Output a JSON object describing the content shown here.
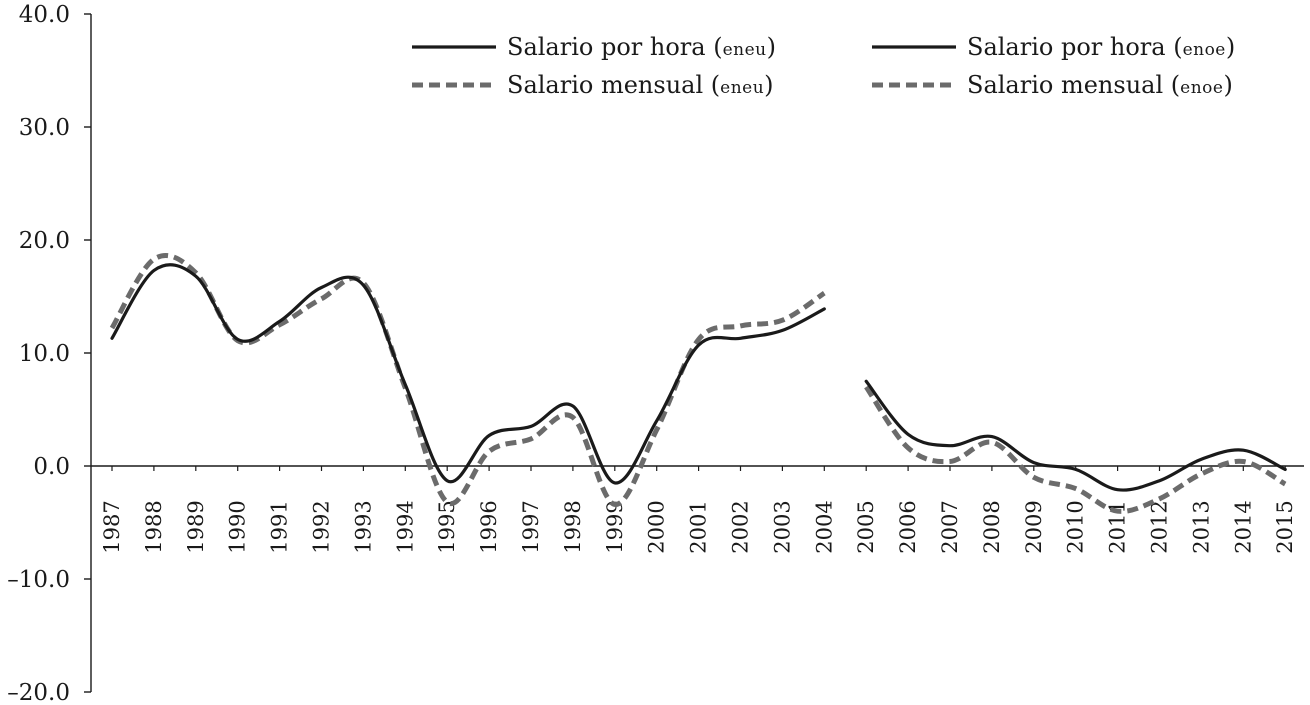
{
  "chart_data": {
    "type": "line",
    "x": [
      1987,
      1988,
      1989,
      1990,
      1991,
      1992,
      1993,
      1994,
      1995,
      1996,
      1997,
      1998,
      1999,
      2000,
      2001,
      2002,
      2003,
      2004,
      2005,
      2006,
      2007,
      2008,
      2009,
      2010,
      2011,
      2012,
      2013,
      2014,
      2015
    ],
    "x_tick_labels": [
      "1987",
      "1988",
      "1989",
      "1990",
      "1991",
      "1992",
      "1993",
      "1994",
      "1995",
      "1996",
      "1997",
      "1998",
      "1999",
      "2000",
      "2001",
      "2002",
      "2003",
      "2004",
      "2005",
      "2006",
      "2007",
      "2008",
      "2009",
      "2010",
      "2011",
      "2012",
      "2013",
      "2014",
      "2015"
    ],
    "y_ticks": [
      -20,
      -10,
      0,
      10,
      20,
      30,
      40
    ],
    "y_tick_labels": [
      "–20.0",
      "–10.0",
      "0.0",
      "10.0",
      "20.0",
      "30.0",
      "40.0"
    ],
    "ylim": [
      -20,
      40
    ],
    "title": "",
    "xlabel": "",
    "ylabel": "",
    "grid": false,
    "legend_position": "top-right",
    "series": [
      {
        "name": "Salario por hora",
        "source": "ENEU",
        "style": "solid",
        "color": "#1a1a1a",
        "values": [
          11.3,
          17.3,
          16.8,
          11.2,
          12.8,
          15.8,
          16.0,
          7.2,
          -1.3,
          2.7,
          3.5,
          5.3,
          -1.5,
          4.0,
          10.7,
          11.3,
          12.0,
          13.9,
          null,
          null,
          null,
          null,
          null,
          null,
          null,
          null,
          null,
          null,
          null
        ]
      },
      {
        "name": "Salario mensual",
        "source": "ENEU",
        "style": "dashed",
        "color": "#6b6b6b",
        "values": [
          12.2,
          18.3,
          17.1,
          11.1,
          12.5,
          14.8,
          16.2,
          6.9,
          -3.2,
          1.3,
          2.4,
          4.3,
          -3.4,
          3.2,
          11.2,
          12.4,
          12.9,
          15.3,
          null,
          null,
          null,
          null,
          null,
          null,
          null,
          null,
          null,
          null,
          null
        ]
      },
      {
        "name": "Salario por hora",
        "source": "ENOE",
        "style": "solid",
        "color": "#1a1a1a",
        "values": [
          null,
          null,
          null,
          null,
          null,
          null,
          null,
          null,
          null,
          null,
          null,
          null,
          null,
          null,
          null,
          null,
          null,
          null,
          7.5,
          2.8,
          1.8,
          2.6,
          0.3,
          -0.3,
          -2.1,
          -1.3,
          0.6,
          1.4,
          -0.3
        ]
      },
      {
        "name": "Salario mensual",
        "source": "ENOE",
        "style": "dashed",
        "color": "#6b6b6b",
        "values": [
          null,
          null,
          null,
          null,
          null,
          null,
          null,
          null,
          null,
          null,
          null,
          null,
          null,
          null,
          null,
          null,
          null,
          null,
          7.0,
          1.6,
          0.4,
          2.1,
          -1.0,
          -2.0,
          -4.0,
          -2.9,
          -0.7,
          0.4,
          -1.6
        ]
      }
    ]
  },
  "legend": {
    "items": [
      {
        "label": "Salario por hora (",
        "source": "eneu",
        "close": ")",
        "style": "solid"
      },
      {
        "label": "Salario mensual (",
        "source": "eneu",
        "close": ")",
        "style": "dashed"
      },
      {
        "label": "Salario por hora (",
        "source": "enoe",
        "close": ")",
        "style": "solid"
      },
      {
        "label": "Salario mensual (",
        "source": "enoe",
        "close": ")",
        "style": "dashed"
      }
    ]
  }
}
